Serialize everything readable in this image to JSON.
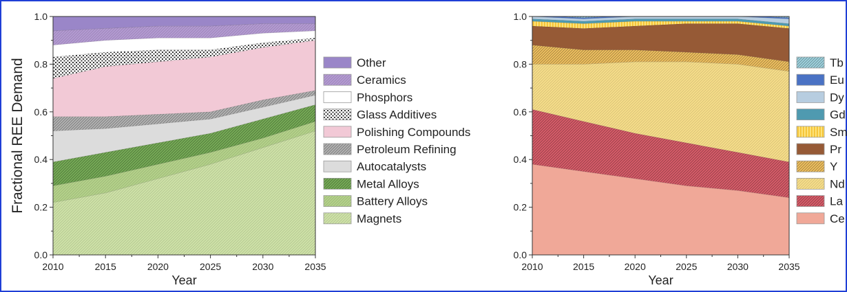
{
  "frame_color": "#1f3fd6",
  "chart_data": [
    {
      "type": "area",
      "stacked": true,
      "xlabel": "Year",
      "ylabel": "Fractional REE Demand",
      "xlim": [
        2010,
        2035
      ],
      "ylim": [
        0,
        1.0
      ],
      "x_ticks": [
        "2010",
        "2015",
        "2020",
        "2025",
        "2030",
        "2035"
      ],
      "y_ticks": [
        "0.0",
        "0.2",
        "0.4",
        "0.6",
        "0.8",
        "1.0"
      ],
      "legend_position": "right",
      "x": [
        2010,
        2015,
        2020,
        2025,
        2030,
        2035
      ],
      "series": [
        {
          "name": "Magnets",
          "color": "#cfe3a8",
          "pattern": "light",
          "values": [
            0.22,
            0.26,
            0.32,
            0.38,
            0.45,
            0.52
          ]
        },
        {
          "name": "Battery Alloys",
          "color": "#b5d38b",
          "pattern": "light",
          "values": [
            0.07,
            0.07,
            0.06,
            0.05,
            0.04,
            0.04
          ]
        },
        {
          "name": "Metal Alloys",
          "color": "#77ad57",
          "pattern": "hatch",
          "values": [
            0.1,
            0.1,
            0.09,
            0.08,
            0.08,
            0.07
          ]
        },
        {
          "name": "Autocatalysts",
          "color": "#dcdcdc",
          "pattern": "none",
          "values": [
            0.13,
            0.1,
            0.08,
            0.06,
            0.05,
            0.04
          ]
        },
        {
          "name": "Petroleum Refining",
          "color": "#b4b4b4",
          "pattern": "hatch",
          "values": [
            0.06,
            0.05,
            0.04,
            0.03,
            0.03,
            0.02
          ]
        },
        {
          "name": "Polishing Compounds",
          "color": "#f2c9d6",
          "pattern": "none",
          "values": [
            0.16,
            0.21,
            0.22,
            0.23,
            0.22,
            0.21
          ]
        },
        {
          "name": "Glass Additives",
          "color": "#ffffff",
          "pattern": "dots",
          "values": [
            0.09,
            0.06,
            0.05,
            0.03,
            0.02,
            0.01
          ]
        },
        {
          "name": "Phosphors",
          "color": "#ffffff",
          "pattern": "none",
          "values": [
            0.05,
            0.05,
            0.05,
            0.05,
            0.04,
            0.03
          ]
        },
        {
          "name": "Ceramics",
          "color": "#b49bd3",
          "pattern": "light",
          "values": [
            0.06,
            0.05,
            0.05,
            0.05,
            0.04,
            0.03
          ]
        },
        {
          "name": "Other",
          "color": "#9a86c8",
          "pattern": "none",
          "values": [
            0.06,
            0.05,
            0.04,
            0.04,
            0.03,
            0.03
          ]
        }
      ]
    },
    {
      "type": "area",
      "stacked": true,
      "xlabel": "Year",
      "ylabel": "",
      "xlim": [
        2010,
        2035
      ],
      "ylim": [
        0,
        1.0
      ],
      "x_ticks": [
        "2010",
        "2015",
        "2020",
        "2025",
        "2030",
        "2035"
      ],
      "y_ticks": [
        "0.0",
        "0.2",
        "0.4",
        "0.6",
        "0.8",
        "1.0"
      ],
      "legend_position": "right",
      "x": [
        2010,
        2015,
        2020,
        2025,
        2030,
        2035
      ],
      "series": [
        {
          "name": "Ce",
          "color": "#f0a898",
          "pattern": "none",
          "values": [
            0.38,
            0.35,
            0.32,
            0.29,
            0.27,
            0.24
          ]
        },
        {
          "name": "La",
          "color": "#d95d6a",
          "pattern": "hatch",
          "values": [
            0.23,
            0.21,
            0.19,
            0.18,
            0.16,
            0.15
          ]
        },
        {
          "name": "Nd",
          "color": "#f7de8a",
          "pattern": "light",
          "values": [
            0.19,
            0.24,
            0.3,
            0.34,
            0.37,
            0.38
          ]
        },
        {
          "name": "Y",
          "color": "#f0c160",
          "pattern": "hatch",
          "values": [
            0.08,
            0.06,
            0.05,
            0.04,
            0.04,
            0.04
          ]
        },
        {
          "name": "Pr",
          "color": "#965a36",
          "pattern": "none",
          "values": [
            0.08,
            0.09,
            0.1,
            0.12,
            0.13,
            0.14
          ]
        },
        {
          "name": "Sm",
          "color": "#f6c63a",
          "pattern": "vstripe",
          "values": [
            0.02,
            0.02,
            0.02,
            0.01,
            0.01,
            0.01
          ]
        },
        {
          "name": "Gd",
          "color": "#4f9ab0",
          "pattern": "none",
          "values": [
            0.01,
            0.01,
            0.01,
            0.01,
            0.01,
            0.01
          ]
        },
        {
          "name": "Dy",
          "color": "#b7cde0",
          "pattern": "none",
          "values": [
            0.01,
            0.01,
            0.01,
            0.01,
            0.01,
            0.02
          ]
        },
        {
          "name": "Eu",
          "color": "#4a72c4",
          "pattern": "none",
          "values": [
            0.005,
            0.005,
            0.005,
            0.005,
            0.005,
            0.005
          ]
        },
        {
          "name": "Tb",
          "color": "#9fd3df",
          "pattern": "hatch",
          "values": [
            0.005,
            0.005,
            0.005,
            0.005,
            0.005,
            0.005
          ]
        }
      ]
    }
  ]
}
